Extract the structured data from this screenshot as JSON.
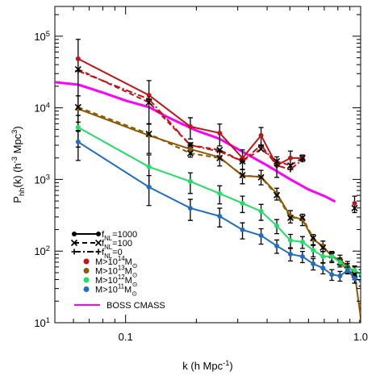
{
  "chart_data": {
    "type": "line",
    "log_x": true,
    "log_y": true,
    "xlabel": [
      {
        "text": "k (h Mpc"
      },
      {
        "text": "-1",
        "sup": true
      },
      {
        "text": ")"
      }
    ],
    "ylabel": [
      {
        "text": "P"
      },
      {
        "text": "hh",
        "sub": true
      },
      {
        "text": "(k) (h"
      },
      {
        "text": "-3",
        "sup": true
      },
      {
        "text": " Mpc"
      },
      {
        "text": "3",
        "sup": true
      },
      {
        "text": ")"
      }
    ],
    "xlim": [
      0.05,
      1.0
    ],
    "ylim": [
      10,
      260000
    ],
    "xticks": [
      0.1,
      {
        "value": 1,
        "label": "1.0"
      }
    ],
    "yticks": [
      {
        "value": 10,
        "label": [
          {
            "text": "10"
          },
          {
            "text": "1",
            "sup": true
          }
        ]
      },
      {
        "value": 100,
        "label": [
          {
            "text": "10"
          },
          {
            "text": "2",
            "sup": true
          }
        ]
      },
      {
        "value": 1000,
        "label": [
          {
            "text": "10"
          },
          {
            "text": "3",
            "sup": true
          }
        ]
      },
      {
        "value": 10000,
        "label": [
          {
            "text": "10"
          },
          {
            "text": "4",
            "sup": true
          }
        ]
      },
      {
        "value": 100000,
        "label": [
          {
            "text": "10"
          },
          {
            "text": "5",
            "sup": true
          }
        ]
      }
    ],
    "xminorticks": [
      0.06,
      0.07,
      0.08,
      0.09,
      0.2,
      0.3,
      0.4,
      0.5,
      0.6,
      0.7,
      0.8,
      0.9
    ],
    "yminorticks": [
      20,
      30,
      40,
      50,
      60,
      70,
      80,
      90,
      200,
      300,
      400,
      500,
      600,
      700,
      800,
      900,
      2000,
      3000,
      4000,
      5000,
      6000,
      7000,
      8000,
      9000,
      20000,
      30000,
      40000,
      50000,
      60000,
      70000,
      80000,
      90000,
      200000
    ],
    "k": [
      0.0628,
      0.1257,
      0.1885,
      0.2513,
      0.3142,
      0.377,
      0.4398,
      0.5027,
      0.5655,
      0.6283,
      0.6912,
      0.754,
      0.8168,
      0.8796,
      0.9425,
      1.0053
    ],
    "models": [
      {
        "name": [
          {
            "text": "f"
          },
          {
            "text": "NL",
            "sub": true
          },
          {
            "text": "=1000"
          }
        ],
        "dash": "solid",
        "marker": "circle"
      },
      {
        "name": [
          {
            "text": "f"
          },
          {
            "text": "NL",
            "sub": true
          },
          {
            "text": "=100"
          }
        ],
        "dash": "dashed",
        "marker": "cross"
      },
      {
        "name": [
          {
            "text": "f"
          },
          {
            "text": "NL",
            "sub": true
          },
          {
            "text": "=0"
          }
        ],
        "dash": "dashdot",
        "marker": "plus"
      }
    ],
    "series": [
      {
        "name": [
          {
            "text": "M>10"
          },
          {
            "text": "14",
            "sup": true
          },
          {
            "text": "M"
          },
          {
            "text": "⊙",
            "sub": true
          }
        ],
        "color": "#c01418",
        "values": [
          [
            48300,
            15000,
            5470,
            4440,
            1990,
            4110,
            1570,
            1990,
            1990,
            null,
            null,
            null,
            null,
            null,
            465,
            null
          ],
          [
            34500,
            11900,
            3010,
            2580,
            1790,
            2650,
            1790,
            1570,
            1990,
            null,
            null,
            null,
            null,
            null,
            398,
            null
          ],
          [
            32800,
            13200,
            3010,
            2450,
            1790,
            3010,
            1570,
            1380,
            1890,
            null,
            null,
            null,
            null,
            null,
            null,
            null
          ]
        ],
        "errors": [
          42000,
          9000,
          1800,
          1500,
          600,
          1200,
          500,
          500,
          200,
          null,
          null,
          null,
          null,
          null,
          120,
          null
        ]
      },
      {
        "name": [
          {
            "text": "M>10"
          },
          {
            "text": "13",
            "sup": true
          },
          {
            "text": "M"
          },
          {
            "text": "⊙",
            "sub": true
          }
        ],
        "color": "#8b5a00",
        "values": [
          [
            9680,
            4110,
            2650,
            2040,
            1120,
            1090,
            635,
            307,
            277,
            145,
            118,
            84,
            75.7,
            61.5,
            50,
            10.5
          ],
          [
            10200,
            4330,
            2320,
            1990,
            1150,
            1070,
            603,
            292,
            292,
            152,
            112,
            88,
            70,
            54,
            47,
            null
          ]
        ],
        "errors": [
          5000,
          1800,
          600,
          500,
          250,
          250,
          120,
          60,
          50,
          25,
          20,
          15,
          12,
          10,
          10,
          8
        ]
      },
      {
        "name": [
          {
            "text": "M>10"
          },
          {
            "text": "12",
            "sup": true
          },
          {
            "text": "M"
          },
          {
            "text": "⊙",
            "sub": true
          }
        ],
        "color": "#22dd66",
        "values": [
          [
            5330,
            1500,
            937,
            635,
            465,
            359,
            225,
            141,
            134,
            103,
            84,
            84,
            70,
            58,
            54,
            47
          ]
        ],
        "errors": [
          2500,
          700,
          300,
          180,
          120,
          90,
          50,
          30,
          25,
          20,
          15,
          12,
          10,
          9,
          8,
          8
        ]
      },
      {
        "name": [
          {
            "text": "M>10"
          },
          {
            "text": "11",
            "sup": true
          },
          {
            "text": "M"
          },
          {
            "text": "⊙",
            "sub": true
          }
        ],
        "color": "#1f6fc0",
        "values": [
          [
            3340,
            782,
            398,
            307,
            198,
            165,
            118,
            90.7,
            84,
            66.5,
            58,
            47,
            45,
            54,
            41.7,
            38.5
          ]
        ],
        "errors": [
          1500,
          350,
          130,
          90,
          50,
          40,
          25,
          18,
          15,
          12,
          10,
          8,
          7,
          6,
          6,
          6
        ]
      }
    ],
    "reference": {
      "name": "BOSS CMASS",
      "color": "#ff00ff",
      "x": [
        0.05,
        0.063,
        0.08,
        0.1,
        0.126,
        0.15,
        0.2,
        0.25,
        0.3,
        0.4,
        0.5,
        0.6,
        0.7,
        0.78
      ],
      "values": [
        22800,
        21000,
        16300,
        12600,
        10200,
        7470,
        4810,
        3710,
        2650,
        1570,
        1010,
        723,
        587,
        490
      ]
    }
  }
}
